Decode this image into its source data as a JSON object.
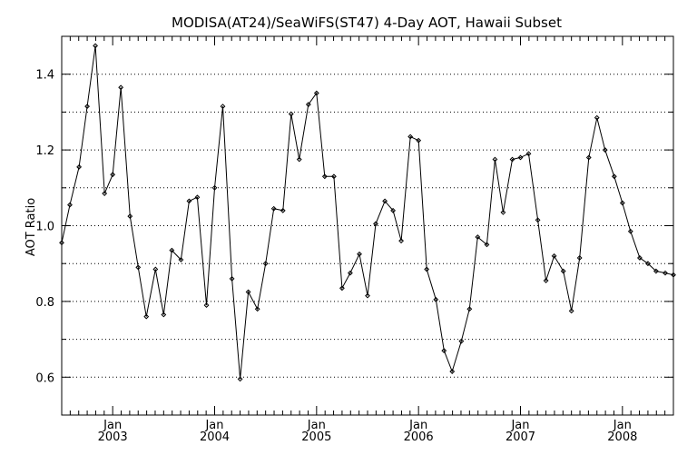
{
  "chart_data": {
    "type": "line",
    "title": "MODISA(AT24)/SeaWiFS(ST47) 4-Day AOT, Hawaii Subset",
    "xlabel": "",
    "ylabel": "AOT Ratio",
    "xlim": [
      2002.5,
      2008.5
    ],
    "ylim": [
      0.5,
      1.5
    ],
    "y_ticks": [
      "0.6",
      "0.8",
      "1.0",
      "1.2",
      "1.4"
    ],
    "y_tick_values": [
      0.6,
      0.8,
      1.0,
      1.2,
      1.4
    ],
    "y_minor_values": [
      0.5,
      0.7,
      0.9,
      1.1,
      1.3,
      1.5
    ],
    "x_ticks": [
      {
        "month": "Jan",
        "year": "2003",
        "value": 2003.0
      },
      {
        "month": "Jan",
        "year": "2004",
        "value": 2004.0
      },
      {
        "month": "Jan",
        "year": "2005",
        "value": 2005.0
      },
      {
        "month": "Jan",
        "year": "2006",
        "value": 2006.0
      },
      {
        "month": "Jan",
        "year": "2007",
        "value": 2007.0
      },
      {
        "month": "Jan",
        "year": "2008",
        "value": 2008.0
      }
    ],
    "grid": "horizontal dotted",
    "series": [
      {
        "x": [
          2002.5,
          2002.58,
          2002.67,
          2002.75,
          2002.83,
          2002.92,
          2003.0,
          2003.08,
          2003.17,
          2003.25,
          2003.33,
          2003.42,
          2003.5,
          2003.58,
          2003.67,
          2003.75,
          2003.83,
          2003.92,
          2004.0,
          2004.08,
          2004.17,
          2004.25,
          2004.33,
          2004.42,
          2004.5,
          2004.58,
          2004.67,
          2004.75,
          2004.83,
          2004.92,
          2005.0,
          2005.08,
          2005.17,
          2005.25,
          2005.33,
          2005.42,
          2005.5,
          2005.58,
          2005.67,
          2005.75,
          2005.83,
          2005.92,
          2006.0,
          2006.08,
          2006.17,
          2006.25,
          2006.33,
          2006.42,
          2006.5,
          2006.58,
          2006.67,
          2006.75,
          2006.83,
          2006.92,
          2007.0,
          2007.08,
          2007.17,
          2007.25,
          2007.33,
          2007.42,
          2007.5,
          2007.58,
          2007.67,
          2007.75,
          2007.83,
          2007.92,
          2008.0,
          2008.08,
          2008.17,
          2008.25,
          2008.33,
          2008.42,
          2008.5
        ],
        "y": [
          0.955,
          1.055,
          1.155,
          1.315,
          1.475,
          1.085,
          1.135,
          1.365,
          1.025,
          0.89,
          0.76,
          0.885,
          0.765,
          0.935,
          0.91,
          1.065,
          1.075,
          0.79,
          1.1,
          1.315,
          0.86,
          0.595,
          0.825,
          0.78,
          0.9,
          1.045,
          1.04,
          1.295,
          1.175,
          1.32,
          1.35,
          1.13,
          1.13,
          0.835,
          0.875,
          0.925,
          0.815,
          1.005,
          1.065,
          1.04,
          0.96,
          1.235,
          1.225,
          0.885,
          0.805,
          0.67,
          0.615,
          0.695,
          0.78,
          0.97,
          0.95,
          1.175,
          1.035,
          1.175,
          1.18,
          1.19,
          1.015,
          0.855,
          0.92,
          0.88,
          0.775,
          0.915,
          1.18,
          1.285,
          1.2,
          1.13,
          1.06,
          0.985,
          0.915,
          0.9,
          0.88,
          0.875,
          0.87
        ]
      }
    ]
  }
}
